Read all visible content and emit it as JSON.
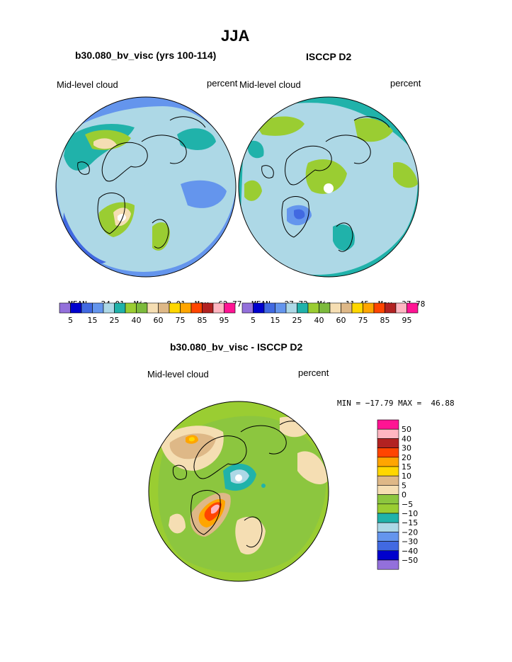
{
  "page_title": "JJA",
  "left_panel": {
    "title": "b30.080_bv_visc (yrs 100-114)",
    "field_label": "Mid-level cloud",
    "units": "percent",
    "stats": {
      "mean_label": "MEAN=",
      "mean": "24.01",
      "min_label": "Min=",
      "min": "8.01",
      "max_label": "Max=",
      "max": "62.77"
    }
  },
  "right_panel": {
    "title": "ISCCP D2",
    "field_label": "Mid-level cloud",
    "units": "percent",
    "stats": {
      "mean_label": "MEAN=",
      "mean": "27.72",
      "min_label": "Min=",
      "min": "11.45",
      "max_label": "Max=",
      "max": "37.78"
    }
  },
  "diff_panel": {
    "title": "b30.080_bv_visc - ISCCP D2",
    "field_label": "Mid-level cloud",
    "units": "percent",
    "minmax_text": "MIN = −17.79 MAX =  46.88"
  },
  "colorbars": {
    "abs_colors": [
      "#9370db",
      "#0000cd",
      "#4169e1",
      "#6495ed",
      "#add8e6",
      "#20b2aa",
      "#9acd32",
      "#7cba3c",
      "#f5deb3",
      "#deb887",
      "#ffd700",
      "#ffa500",
      "#ff4500",
      "#b22222",
      "#ffb6c1",
      "#ff1493"
    ],
    "abs_ticks": [
      "5",
      "15",
      "25",
      "40",
      "60",
      "75",
      "85",
      "95"
    ],
    "diff_colors": [
      "#9370db",
      "#0000cd",
      "#4169e1",
      "#6495ed",
      "#add8e6",
      "#20b2aa",
      "#9acd32",
      "#8cc63f",
      "#f5deb3",
      "#deb887",
      "#ffd700",
      "#ffa500",
      "#ff4500",
      "#b22222",
      "#ffb6c1",
      "#ff1493"
    ],
    "diff_ticks": [
      "50",
      "40",
      "30",
      "20",
      "15",
      "10",
      "5",
      "0",
      "−5",
      "−10",
      "−15",
      "−20",
      "−30",
      "−40",
      "−50"
    ]
  },
  "chart_data": [
    {
      "type": "heatmap",
      "title": "b30.080_bv_visc (yrs 100-114)",
      "field": "Mid-level cloud",
      "units": "percent",
      "projection": "north polar stereographic",
      "stats": {
        "mean": 24.01,
        "min": 8.01,
        "max": 62.77
      }
    },
    {
      "type": "heatmap",
      "title": "ISCCP D2",
      "field": "Mid-level cloud",
      "units": "percent",
      "projection": "north polar stereographic",
      "stats": {
        "mean": 27.72,
        "min": 11.45,
        "max": 37.78
      }
    },
    {
      "type": "heatmap",
      "title": "b30.080_bv_visc - ISCCP D2",
      "field": "Mid-level cloud",
      "units": "percent",
      "projection": "north polar stereographic",
      "stats": {
        "min": -17.79,
        "max": 46.88
      }
    }
  ]
}
